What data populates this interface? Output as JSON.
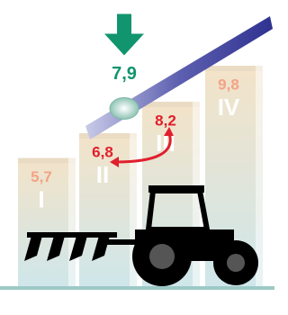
{
  "chart_data": {
    "type": "bar",
    "categories": [
      "I",
      "II",
      "III",
      "IV"
    ],
    "values": [
      5.7,
      6.8,
      8.2,
      9.8
    ],
    "value_labels": [
      "5,7",
      "6,8",
      "8,2",
      "9,8"
    ],
    "label_colors": [
      "#f2a386",
      "#e01f2d",
      "#e01f2d",
      "#f2a386"
    ],
    "color": "#eadcc4",
    "marker": {
      "value": 7.9,
      "label": "7,9",
      "color": "#11956e"
    }
  }
}
